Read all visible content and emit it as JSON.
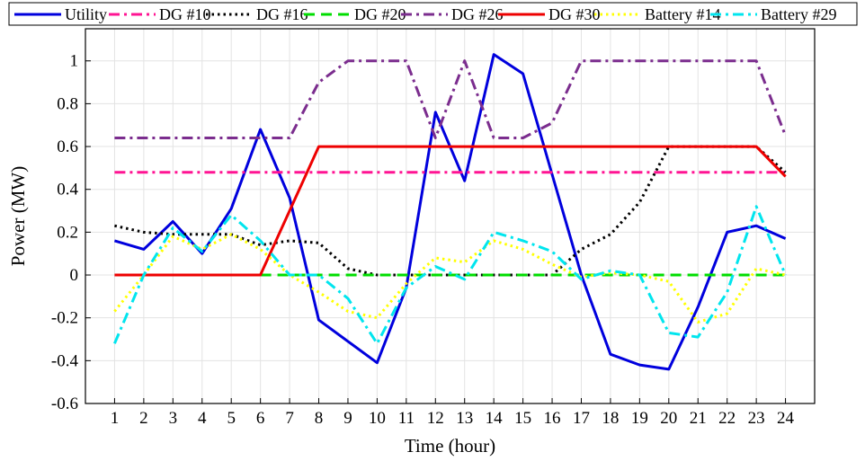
{
  "chart_data": {
    "type": "line",
    "xlabel": "Time (hour)",
    "ylabel": "Power (MW)",
    "xlim": [
      0,
      25
    ],
    "ylim": [
      -0.6,
      1.15
    ],
    "x": [
      1,
      2,
      3,
      4,
      5,
      6,
      7,
      8,
      9,
      10,
      11,
      12,
      13,
      14,
      15,
      16,
      17,
      18,
      19,
      20,
      21,
      22,
      23,
      24
    ],
    "x_tick_labels": [
      "1",
      "2",
      "3",
      "4",
      "5",
      "6",
      "7",
      "8",
      "9",
      "10",
      "11",
      "12",
      "13",
      "14",
      "15",
      "16",
      "17",
      "18",
      "19",
      "20",
      "21",
      "22",
      "23",
      "24"
    ],
    "y_ticks": [
      -0.6,
      -0.4,
      -0.2,
      0,
      0.2,
      0.4,
      0.6,
      0.8,
      1
    ],
    "y_tick_labels": [
      "-0.6",
      "-0.4",
      "-0.2",
      "0",
      "0.2",
      "0.4",
      "0.6",
      "0.8",
      "1"
    ],
    "grid": true,
    "legend_position": "top",
    "series": [
      {
        "name": "Utility",
        "color": "#0000dd",
        "dash": "solid",
        "values": [
          0.16,
          0.12,
          0.25,
          0.1,
          0.31,
          0.68,
          0.36,
          -0.21,
          -0.31,
          -0.41,
          -0.06,
          0.76,
          0.44,
          1.03,
          0.94,
          0.47,
          0.0,
          -0.37,
          -0.42,
          -0.44,
          -0.15,
          0.2,
          0.23,
          0.17
        ]
      },
      {
        "name": "DG #10",
        "color": "#ff1493",
        "dash": "dashdot",
        "values": [
          0.48,
          0.48,
          0.48,
          0.48,
          0.48,
          0.48,
          0.48,
          0.48,
          0.48,
          0.48,
          0.48,
          0.48,
          0.48,
          0.48,
          0.48,
          0.48,
          0.48,
          0.48,
          0.48,
          0.48,
          0.48,
          0.48,
          0.48,
          0.48
        ]
      },
      {
        "name": "DG #16",
        "color": "#000000",
        "dash": "dotted",
        "values": [
          0.23,
          0.2,
          0.19,
          0.19,
          0.19,
          0.14,
          0.16,
          0.15,
          0.03,
          0.0,
          0.0,
          0.0,
          0.0,
          0.0,
          0.0,
          0.0,
          0.12,
          0.19,
          0.34,
          0.6,
          0.6,
          0.6,
          0.6,
          0.48
        ]
      },
      {
        "name": "DG #20",
        "color": "#00dd00",
        "dash": "dashed",
        "values": [
          null,
          null,
          null,
          null,
          null,
          0.0,
          0.0,
          0.0,
          0.0,
          0.0,
          0.0,
          0.0,
          0.0,
          0.0,
          0.0,
          0.0,
          0.0,
          0.0,
          0.0,
          0.0,
          0.0,
          0.0,
          0.0,
          0.0
        ]
      },
      {
        "name": "DG #26",
        "color": "#7b2d8e",
        "dash": "dashdot",
        "values": [
          0.64,
          0.64,
          0.64,
          0.64,
          0.64,
          0.64,
          0.64,
          0.9,
          1.0,
          1.0,
          1.0,
          0.64,
          1.0,
          0.64,
          0.64,
          0.71,
          1.0,
          1.0,
          1.0,
          1.0,
          1.0,
          1.0,
          1.0,
          0.65
        ]
      },
      {
        "name": "DG #30",
        "color": "#ee0000",
        "dash": "solid",
        "values": [
          0.0,
          0.0,
          0.0,
          0.0,
          0.0,
          0.0,
          0.3,
          0.6,
          0.6,
          0.6,
          0.6,
          0.6,
          0.6,
          0.6,
          0.6,
          0.6,
          0.6,
          0.6,
          0.6,
          0.6,
          0.6,
          0.6,
          0.6,
          0.46
        ]
      },
      {
        "name": "Battery #14",
        "color": "#ffff00",
        "dash": "dotted",
        "values": [
          -0.17,
          0.0,
          0.18,
          0.12,
          0.19,
          0.12,
          0.0,
          -0.08,
          -0.17,
          -0.2,
          -0.04,
          0.08,
          0.06,
          0.16,
          0.12,
          0.05,
          -0.01,
          0.01,
          0.0,
          -0.03,
          -0.22,
          -0.18,
          0.03,
          0.0
        ]
      },
      {
        "name": "Battery #29",
        "color": "#00e5ee",
        "dash": "dashdot",
        "values": [
          -0.32,
          0.0,
          0.22,
          0.11,
          0.28,
          0.16,
          0.0,
          0.0,
          -0.11,
          -0.32,
          -0.06,
          0.04,
          -0.02,
          0.2,
          0.16,
          0.11,
          -0.02,
          0.02,
          0.0,
          -0.27,
          -0.29,
          -0.08,
          0.32,
          0.0
        ]
      }
    ]
  }
}
